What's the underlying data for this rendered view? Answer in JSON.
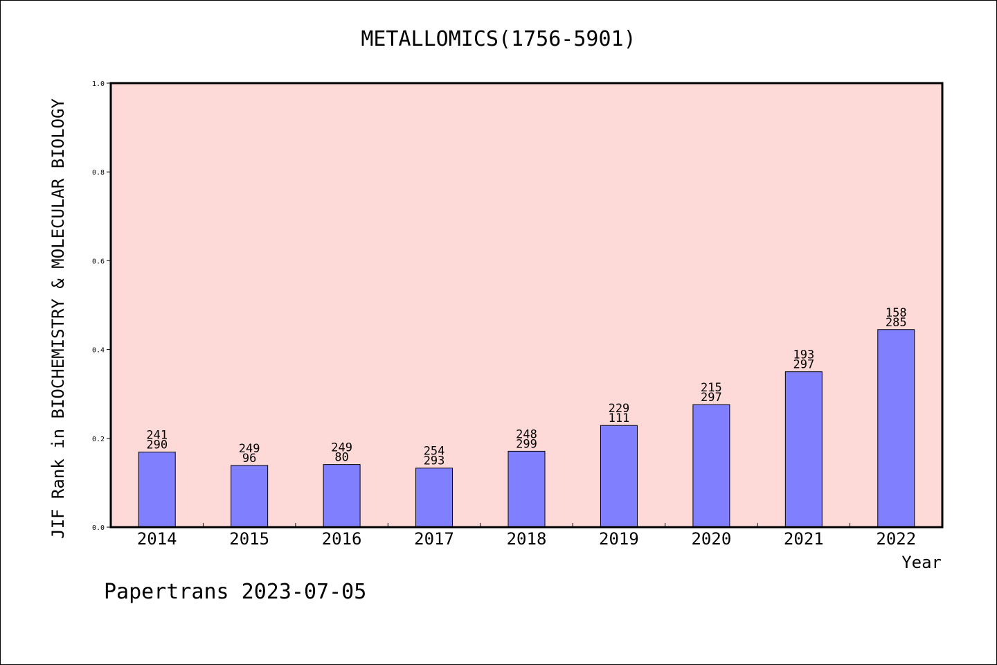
{
  "chart_data": {
    "type": "bar",
    "title": "METALLOMICS(1756-5901)",
    "xlabel": "Year",
    "ylabel": "JIF Rank in BIOCHEMISTRY & MOLECULAR BIOLOGY",
    "ylim": [
      0,
      1.0
    ],
    "yticks": [
      "0.0",
      "0.2",
      "0.4",
      "0.6",
      "0.8",
      "1.0"
    ],
    "grid": false,
    "categories": [
      "2014",
      "2015",
      "2016",
      "2017",
      "2018",
      "2019",
      "2020",
      "2021",
      "2022"
    ],
    "values": [
      0.169,
      0.139,
      0.141,
      0.133,
      0.171,
      0.229,
      0.276,
      0.35,
      0.445
    ],
    "bar_labels": [
      {
        "top": "241",
        "bottom": "290"
      },
      {
        "top": "249",
        "bottom": "96"
      },
      {
        "top": "249",
        "bottom": "80"
      },
      {
        "top": "254",
        "bottom": "293"
      },
      {
        "top": "248",
        "bottom": "299"
      },
      {
        "top": "229",
        "bottom": "111"
      },
      {
        "top": "215",
        "bottom": "297"
      },
      {
        "top": "193",
        "bottom": "297"
      },
      {
        "top": "158",
        "bottom": "285"
      }
    ],
    "colors": {
      "bar": "#8080ff",
      "plot_background": "#fddad7",
      "axis": "#000000"
    }
  },
  "footer": {
    "credit": "Papertrans 2023-07-05"
  }
}
